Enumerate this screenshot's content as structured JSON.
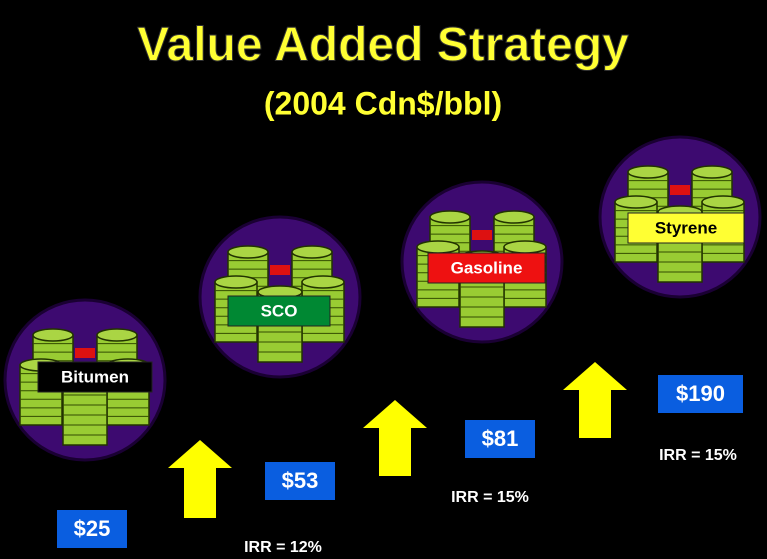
{
  "header": {
    "title": "Value Added Strategy",
    "subtitle": "(2004 Cdn$/bbl)"
  },
  "stages": [
    {
      "label": "Bitumen",
      "price": "$25"
    },
    {
      "label": "SCO",
      "price": "$53"
    },
    {
      "label": "Gasoline",
      "price": "$81"
    },
    {
      "label": "Styrene",
      "price": "$190"
    }
  ],
  "irr": [
    "IRR = 12%",
    "IRR = 15%",
    "IRR = 15%"
  ]
}
